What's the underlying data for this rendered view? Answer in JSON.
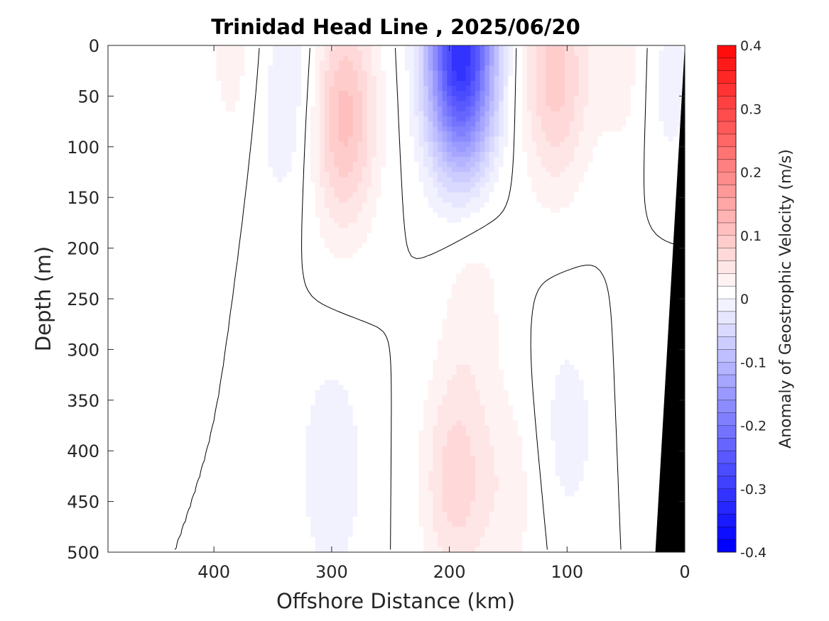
{
  "chart_data": {
    "type": "heatmap",
    "title": "Trinidad Head Line , 2025/06/20",
    "xlabel": "Offshore Distance (km)",
    "ylabel": "Depth (m)",
    "colorbar_label": "Anomaly of Geostrophic Velocity (m/s)",
    "xlim": [
      490,
      0
    ],
    "ylim": [
      0,
      500
    ],
    "x_reversed": true,
    "y_reversed": true,
    "xticks": [
      400,
      300,
      200,
      100,
      0
    ],
    "xtick_labels": [
      "400",
      "300",
      "200",
      "100",
      "0"
    ],
    "yticks": [
      0,
      50,
      100,
      150,
      200,
      250,
      300,
      350,
      400,
      450,
      500
    ],
    "ytick_labels": [
      "0",
      "50",
      "100",
      "150",
      "200",
      "250",
      "300",
      "350",
      "400",
      "450",
      "500"
    ],
    "clim": [
      -0.4,
      0.4
    ],
    "colorbar_ticks": [
      0.4,
      0.3,
      0.2,
      0.1,
      0,
      -0.1,
      -0.2,
      -0.3,
      -0.4
    ],
    "colorbar_tick_labels": [
      "0.4",
      "0.3",
      "0.2",
      "0.1",
      "0",
      "-0.1",
      "-0.2",
      "-0.3",
      "-0.4"
    ],
    "contour_interval": 0.02,
    "colormap": {
      "negative": "#0000ff",
      "zero": "#ffffff",
      "positive": "#ff0000"
    },
    "bathymetry_color": "#000000",
    "cores": [
      {
        "x": 190,
        "depth": 10,
        "value": -0.34
      },
      {
        "x": 290,
        "depth": 70,
        "value": 0.11
      },
      {
        "x": 110,
        "depth": 30,
        "value": 0.09
      },
      {
        "x": 195,
        "depth": 430,
        "value": 0.07
      },
      {
        "x": 300,
        "depth": 420,
        "value": -0.04
      },
      {
        "x": 100,
        "depth": 380,
        "value": -0.03
      },
      {
        "x": 180,
        "depth": 240,
        "value": 0.03
      },
      {
        "x": 330,
        "depth": 30,
        "value": -0.03
      },
      {
        "x": 20,
        "depth": 30,
        "value": -0.04
      },
      {
        "x": 45,
        "depth": 20,
        "value": 0.04
      },
      {
        "x": 380,
        "depth": 20,
        "value": 0.03
      },
      {
        "x": 148,
        "depth": 440,
        "value": 0.03
      },
      {
        "x": 22,
        "depth": 340,
        "value": 0.02
      },
      {
        "x": 350,
        "depth": 75,
        "value": -0.02
      }
    ],
    "bathymetry": [
      [
        0,
        0
      ],
      [
        25,
        500
      ],
      [
        0,
        500
      ]
    ]
  }
}
